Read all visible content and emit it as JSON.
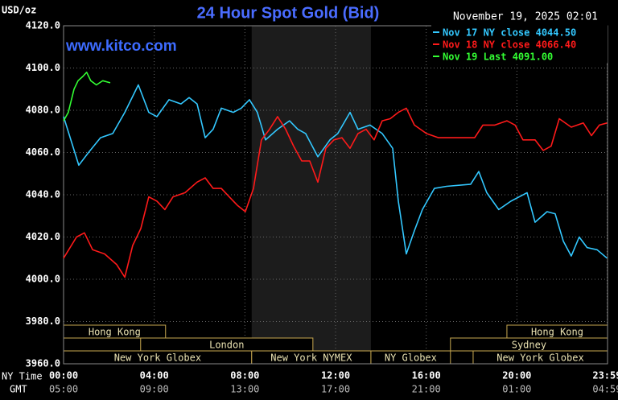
{
  "chart_data": {
    "type": "line",
    "title": "24 Hour Spot Gold (Bid)",
    "subtitle": "November 19, 2025 02:01",
    "watermark": "www.kitco.com",
    "y_label": "USD/oz",
    "x_label": "NY Time",
    "x2_label": "GMT",
    "xlim": [
      0,
      24
    ],
    "ylim": [
      3960,
      4120
    ],
    "xticks": [
      {
        "value": 0,
        "label": "00:00"
      },
      {
        "value": 4,
        "label": "04:00"
      },
      {
        "value": 8,
        "label": "08:00"
      },
      {
        "value": 12,
        "label": "12:00"
      },
      {
        "value": 16,
        "label": "16:00"
      },
      {
        "value": 20,
        "label": "20:00"
      },
      {
        "value": 23.98,
        "label": "23:59"
      }
    ],
    "x2ticklabels": [
      "05:00",
      "09:00",
      "13:00",
      "17:00",
      "21:00",
      "01:00",
      "04:59"
    ],
    "yticks": [
      {
        "value": 4120,
        "label": "4120.0"
      },
      {
        "value": 4100,
        "label": "4100.0"
      },
      {
        "value": 4080,
        "label": "4080.0"
      },
      {
        "value": 4060,
        "label": "4060.0"
      },
      {
        "value": 4040,
        "label": "4040.0"
      },
      {
        "value": 4020,
        "label": "4020.0"
      },
      {
        "value": 4000,
        "label": "4000.0"
      },
      {
        "value": 3980,
        "label": "3980.0"
      },
      {
        "value": 3960,
        "label": "3960.0"
      }
    ],
    "grid": true,
    "shaded": [
      8.3,
      13.56
    ],
    "session_rows": [
      [
        {
          "label": "Hong Kong",
          "start": 0,
          "end": 4.5
        },
        {
          "label": "Hong Kong",
          "start": 19.56,
          "end": 24
        }
      ],
      [
        {
          "label": "London",
          "start": 3.4,
          "end": 11.0
        },
        {
          "label": "Sydney",
          "start": 17.07,
          "end": 24
        }
      ],
      [
        {
          "label": "New York Globex",
          "start": 0,
          "end": 8.3
        },
        {
          "label": "New York NYMEX",
          "start": 8.3,
          "end": 13.56
        },
        {
          "label": "NY Globex",
          "start": 13.56,
          "end": 17.07
        },
        {
          "label": "New York Globex",
          "start": 18.07,
          "end": 24
        }
      ]
    ],
    "series": [
      {
        "name": "Nov 17 NY close 4044.50",
        "color": "#33c8ff",
        "x": [
          0,
          0.67,
          1.1,
          1.63,
          2.17,
          2.7,
          3.3,
          3.76,
          4.12,
          4.65,
          5.18,
          5.54,
          5.89,
          6.25,
          6.6,
          6.96,
          7.49,
          7.84,
          8.2,
          8.55,
          8.91,
          9.44,
          9.97,
          10.33,
          10.68,
          11.22,
          11.75,
          12.1,
          12.64,
          12.99,
          13.52,
          14.06,
          14.52,
          14.77,
          15.12,
          15.48,
          15.83,
          16.36,
          16.9,
          17.96,
          18.32,
          18.67,
          19.2,
          19.74,
          20.45,
          20.8,
          21.33,
          21.69,
          22.05,
          22.4,
          22.75,
          23.1,
          23.54,
          23.98
        ],
        "values": [
          4077,
          4054,
          4060,
          4067,
          4069,
          4079,
          4092,
          4079,
          4077,
          4085,
          4083,
          4086,
          4083,
          4067,
          4071,
          4081,
          4079,
          4081,
          4085,
          4079,
          4066,
          4071,
          4075,
          4071,
          4069,
          4058,
          4066,
          4069,
          4079,
          4071,
          4073,
          4069,
          4062,
          4037,
          4012,
          4023,
          4033,
          4043,
          4044,
          4045,
          4051,
          4041,
          4033,
          4037,
          4041,
          4027,
          4032,
          4031,
          4018,
          4011,
          4020,
          4015,
          4014,
          4010
        ]
      },
      {
        "name": "Nov 18 NY close 4066.40",
        "color": "#ff1a1a",
        "x": [
          0,
          0.57,
          0.92,
          1.28,
          1.81,
          2.34,
          2.7,
          3.05,
          3.41,
          3.76,
          4.12,
          4.47,
          4.83,
          5.36,
          5.89,
          6.25,
          6.6,
          6.96,
          7.31,
          7.67,
          8.02,
          8.38,
          8.73,
          9.09,
          9.44,
          9.8,
          10.15,
          10.51,
          10.86,
          11.22,
          11.57,
          11.93,
          12.28,
          12.64,
          12.99,
          13.35,
          13.7,
          14.06,
          14.41,
          14.77,
          15.12,
          15.48,
          16.01,
          16.54,
          17.43,
          18.14,
          18.5,
          19.03,
          19.56,
          19.92,
          20.27,
          20.8,
          21.16,
          21.51,
          21.87,
          22.4,
          22.93,
          23.29,
          23.64,
          23.98
        ],
        "values": [
          4010,
          4020,
          4022,
          4014,
          4012,
          4007,
          4001,
          4016,
          4024,
          4039,
          4037,
          4033,
          4039,
          4041,
          4046,
          4048,
          4043,
          4043,
          4039,
          4035,
          4032,
          4043,
          4066,
          4071,
          4077,
          4071,
          4063,
          4056,
          4056,
          4046,
          4062,
          4066,
          4067,
          4062,
          4069,
          4071,
          4066,
          4075,
          4076,
          4079,
          4081,
          4073,
          4069,
          4067,
          4067,
          4067,
          4073,
          4073,
          4075,
          4073,
          4066,
          4066,
          4061,
          4063,
          4076,
          4072,
          4074,
          4068,
          4073,
          4074
        ]
      },
      {
        "name": "Nov 19 Last 4091.00",
        "color": "#33ff33",
        "x": [
          0,
          0.21,
          0.46,
          0.64,
          0.85,
          1.02,
          1.2,
          1.45,
          1.73,
          2.06
        ],
        "values": [
          4075,
          4079,
          4090,
          4094,
          4096,
          4098,
          4094,
          4092,
          4094,
          4093
        ]
      }
    ]
  }
}
